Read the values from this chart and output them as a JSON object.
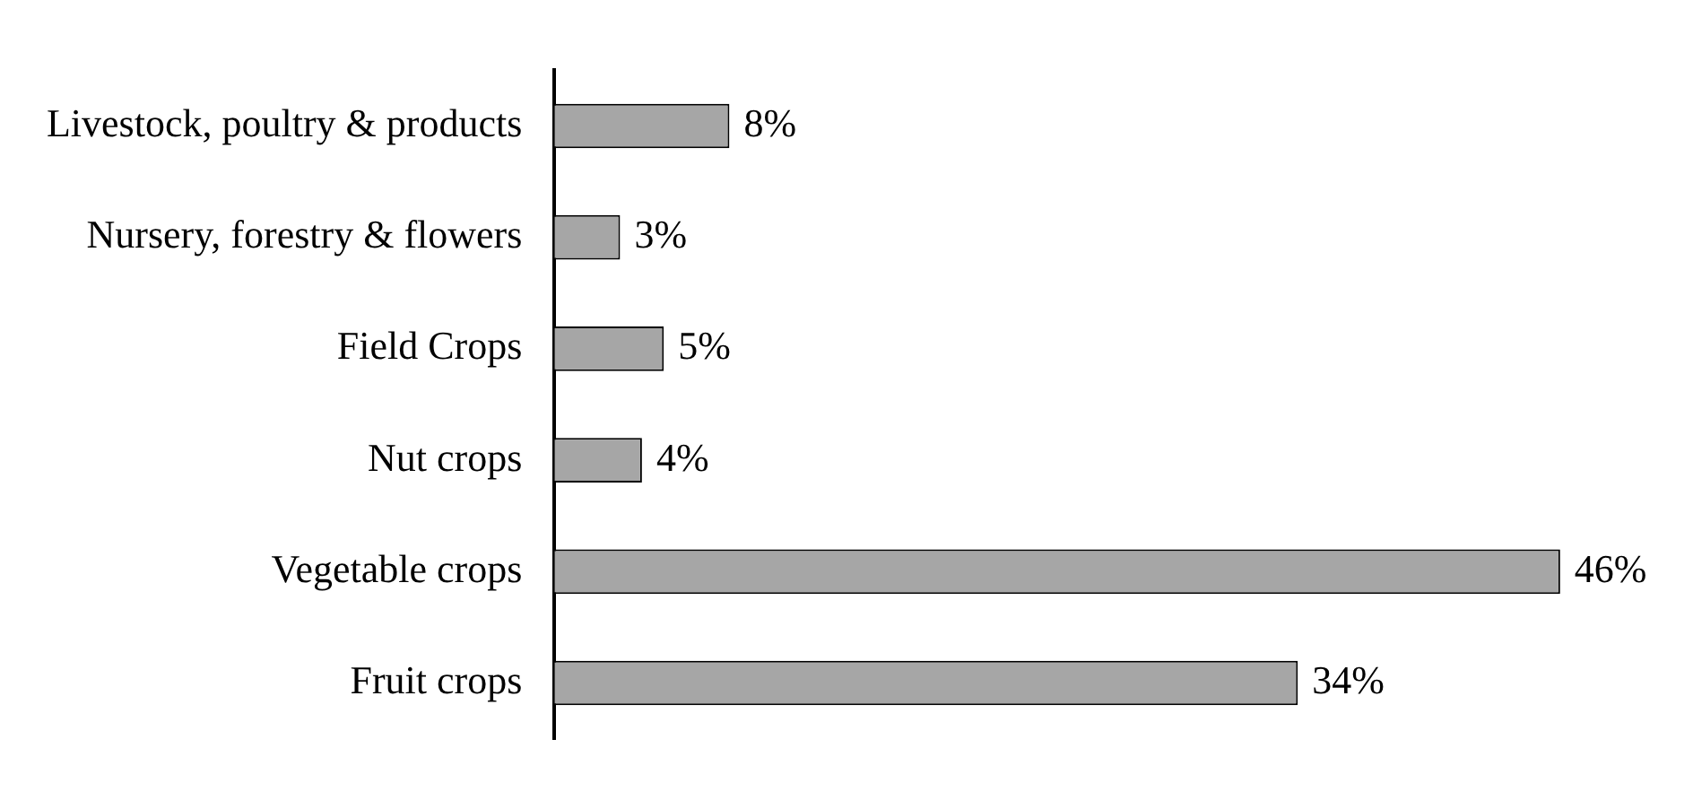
{
  "chart_data": {
    "type": "bar",
    "orientation": "horizontal",
    "categories": [
      "Livestock, poultry & products",
      "Nursery, forestry & flowers",
      "Field Crops",
      "Nut crops",
      "Vegetable crops",
      "Fruit crops"
    ],
    "values": [
      8,
      3,
      5,
      4,
      46,
      34
    ],
    "color": "#a6a6a6",
    "value_labels": [
      "8%",
      "3%",
      "5%",
      "4%",
      "46%",
      "34%"
    ]
  }
}
